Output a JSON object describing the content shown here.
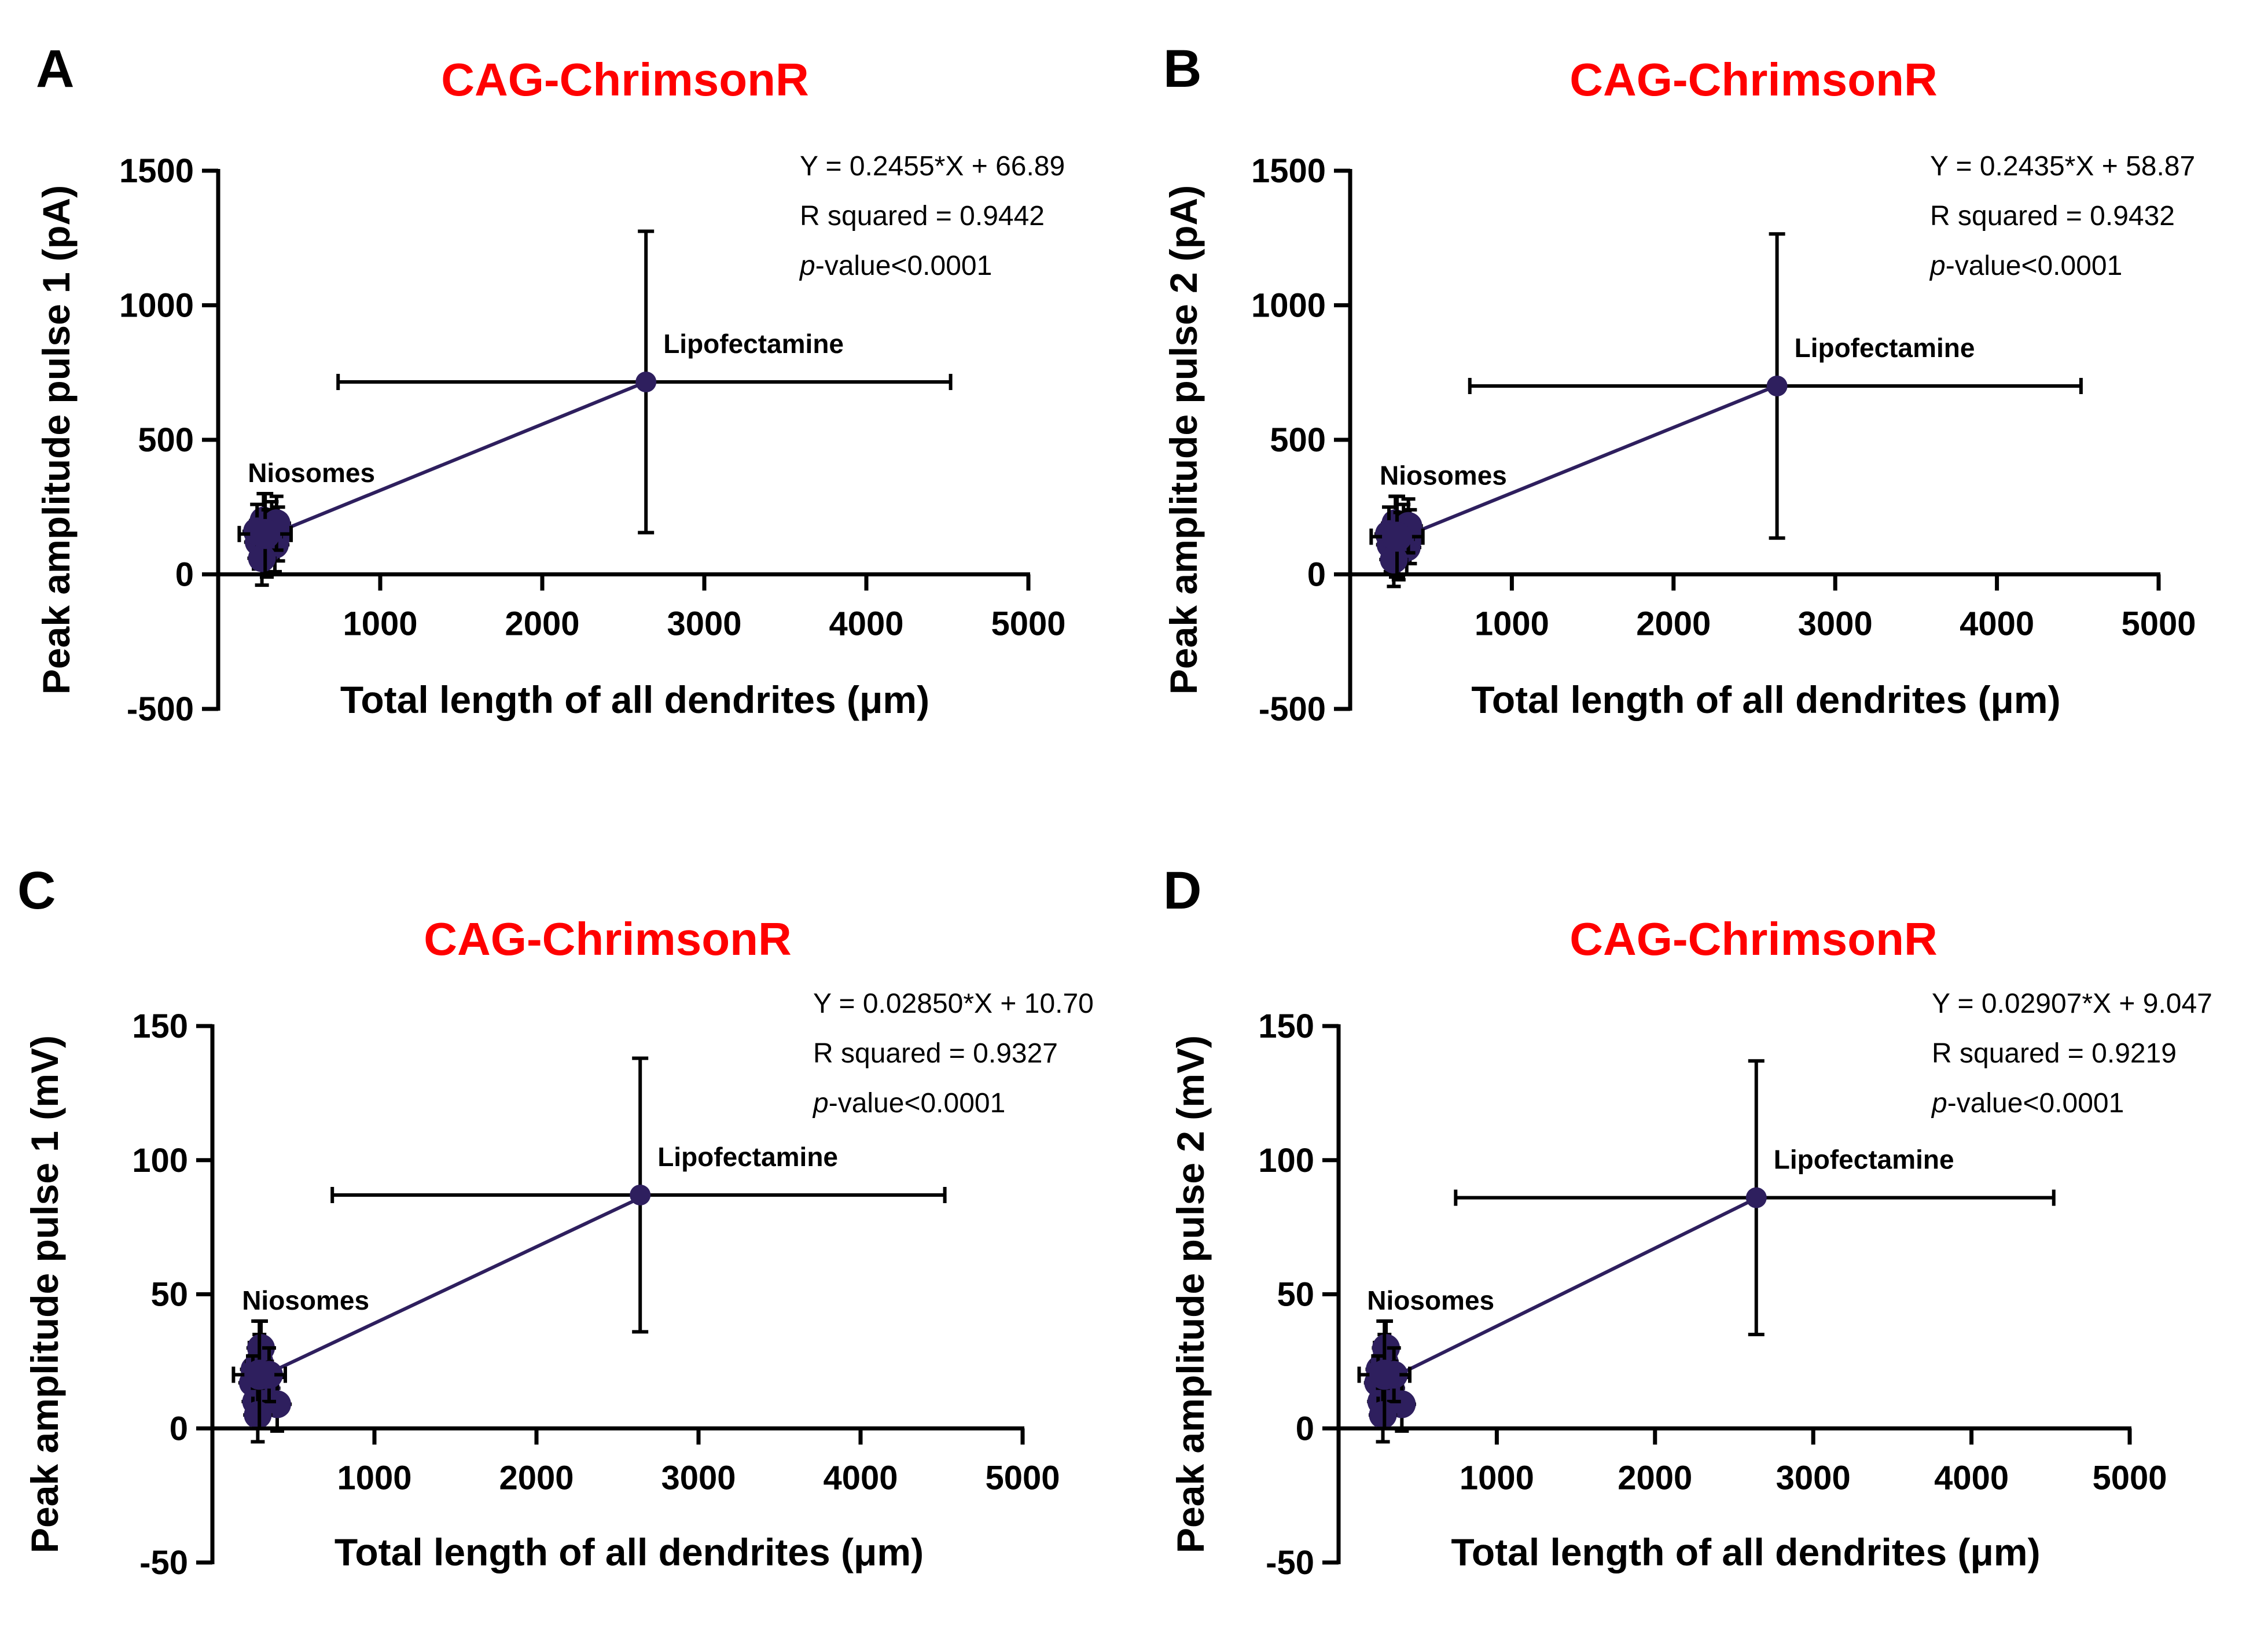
{
  "figure": {
    "marker_color": "#2e1f5e",
    "title_color": "#ff0000",
    "panels": [
      {
        "letter": "A",
        "chart_data": {
          "type": "scatter",
          "title": "CAG-ChrimsonR",
          "xlabel": "Total length of all dendrites (μm)",
          "ylabel": "Peak amplitude pulse 1 (pA)",
          "xlim": [
            0,
            5000
          ],
          "ylim": [
            -500,
            1500
          ],
          "xticks": [
            1000,
            2000,
            3000,
            4000,
            5000
          ],
          "yticks": [
            -500,
            0,
            500,
            1000,
            1500
          ],
          "equation": "Y = 0.2455*X + 66.89",
          "r_squared": "R squared = 0.9442",
          "p_prefix": "p",
          "p_suffix": "-value<0.0001",
          "fit": {
            "slope": 0.2455,
            "intercept": 66.89,
            "x_start": 360,
            "x_end": 2640
          },
          "points": [
            {
              "label": "Lipofectamine",
              "x": 2640,
              "y": 715,
              "x_err_low": 1900,
              "x_err_high": 1880,
              "y_err_low": 560,
              "y_err_high": 560
            },
            {
              "label": "Niosomes",
              "x": 290,
              "y": 150,
              "x_err_low": 160,
              "x_err_high": 160,
              "y_err_low": 150,
              "y_err_high": 150
            }
          ],
          "cluster": [
            [
              250,
              120
            ],
            [
              330,
              170
            ],
            [
              370,
              150
            ],
            [
              300,
              90
            ],
            [
              280,
              200
            ],
            [
              350,
              110
            ],
            [
              240,
              160
            ],
            [
              310,
              140
            ],
            [
              360,
              190
            ],
            [
              270,
              60
            ]
          ]
        }
      },
      {
        "letter": "B",
        "chart_data": {
          "type": "scatter",
          "title": "CAG-ChrimsonR",
          "xlabel": "Total length of all dendrites (μm)",
          "ylabel": "Peak amplitude pulse 2 (pA)",
          "xlim": [
            0,
            5000
          ],
          "ylim": [
            -500,
            1500
          ],
          "xticks": [
            1000,
            2000,
            3000,
            4000,
            5000
          ],
          "yticks": [
            -500,
            0,
            500,
            1000,
            1500
          ],
          "equation": "Y = 0.2435*X + 58.87",
          "r_squared": "R squared = 0.9432",
          "p_prefix": "p",
          "p_suffix": "-value<0.0001",
          "fit": {
            "slope": 0.2435,
            "intercept": 58.87,
            "x_start": 360,
            "x_end": 2640
          },
          "points": [
            {
              "label": "Lipofectamine",
              "x": 2640,
              "y": 700,
              "x_err_low": 1900,
              "x_err_high": 1880,
              "y_err_low": 565,
              "y_err_high": 565
            },
            {
              "label": "Niosomes",
              "x": 290,
              "y": 140,
              "x_err_low": 160,
              "x_err_high": 160,
              "y_err_low": 150,
              "y_err_high": 150
            }
          ],
          "cluster": [
            [
              250,
              110
            ],
            [
              330,
              160
            ],
            [
              370,
              140
            ],
            [
              300,
              80
            ],
            [
              280,
              190
            ],
            [
              350,
              100
            ],
            [
              240,
              150
            ],
            [
              310,
              130
            ],
            [
              360,
              180
            ],
            [
              270,
              55
            ]
          ]
        }
      },
      {
        "letter": "C",
        "chart_data": {
          "type": "scatter",
          "title": "CAG-ChrimsonR",
          "xlabel": "Total length of all dendrites (μm)",
          "ylabel": "Peak amplitude pulse 1 (mV)",
          "xlim": [
            0,
            5000
          ],
          "ylim": [
            -50,
            150
          ],
          "xticks": [
            1000,
            2000,
            3000,
            4000,
            5000
          ],
          "yticks": [
            -50,
            0,
            50,
            100,
            150
          ],
          "equation": "Y = 0.02850*X + 10.70",
          "r_squared": "R squared = 0.9327",
          "p_prefix": "p",
          "p_suffix": "-value<0.0001",
          "fit": {
            "slope": 0.0285,
            "intercept": 10.7,
            "x_start": 330,
            "x_end": 2640
          },
          "points": [
            {
              "label": "Lipofectamine",
              "x": 2640,
              "y": 87,
              "x_err_low": 1900,
              "x_err_high": 1880,
              "y_err_low": 51,
              "y_err_high": 51
            },
            {
              "label": "Niosomes",
              "x": 290,
              "y": 20,
              "x_err_low": 160,
              "x_err_high": 160,
              "y_err_low": 20,
              "y_err_high": 20
            }
          ],
          "cluster": [
            [
              260,
              22
            ],
            [
              320,
              18
            ],
            [
              290,
              25
            ],
            [
              330,
              15
            ],
            [
              270,
              10
            ],
            [
              400,
              9
            ],
            [
              300,
              30
            ],
            [
              250,
              17
            ],
            [
              350,
              20
            ],
            [
              280,
              5
            ]
          ]
        }
      },
      {
        "letter": "D",
        "chart_data": {
          "type": "scatter",
          "title": "CAG-ChrimsonR",
          "xlabel": "Total length of all dendrites (μm)",
          "ylabel": "Peak amplitude pulse 2 (mV)",
          "xlim": [
            0,
            5000
          ],
          "ylim": [
            -50,
            150
          ],
          "xticks": [
            1000,
            2000,
            3000,
            4000,
            5000
          ],
          "yticks": [
            -50,
            0,
            50,
            100,
            150
          ],
          "equation": "Y = 0.02907*X + 9.047",
          "r_squared": "R squared = 0.9219",
          "p_prefix": "p",
          "p_suffix": "-value<0.0001",
          "fit": {
            "slope": 0.02907,
            "intercept": 9.047,
            "x_start": 330,
            "x_end": 2640
          },
          "points": [
            {
              "label": "Lipofectamine",
              "x": 2640,
              "y": 86,
              "x_err_low": 1900,
              "x_err_high": 1880,
              "y_err_low": 51,
              "y_err_high": 51
            },
            {
              "label": "Niosomes",
              "x": 290,
              "y": 20,
              "x_err_low": 160,
              "x_err_high": 160,
              "y_err_low": 20,
              "y_err_high": 20
            }
          ],
          "cluster": [
            [
              260,
              22
            ],
            [
              320,
              18
            ],
            [
              290,
              25
            ],
            [
              330,
              15
            ],
            [
              270,
              10
            ],
            [
              400,
              9
            ],
            [
              300,
              30
            ],
            [
              250,
              17
            ],
            [
              350,
              20
            ],
            [
              280,
              5
            ]
          ]
        }
      }
    ]
  }
}
